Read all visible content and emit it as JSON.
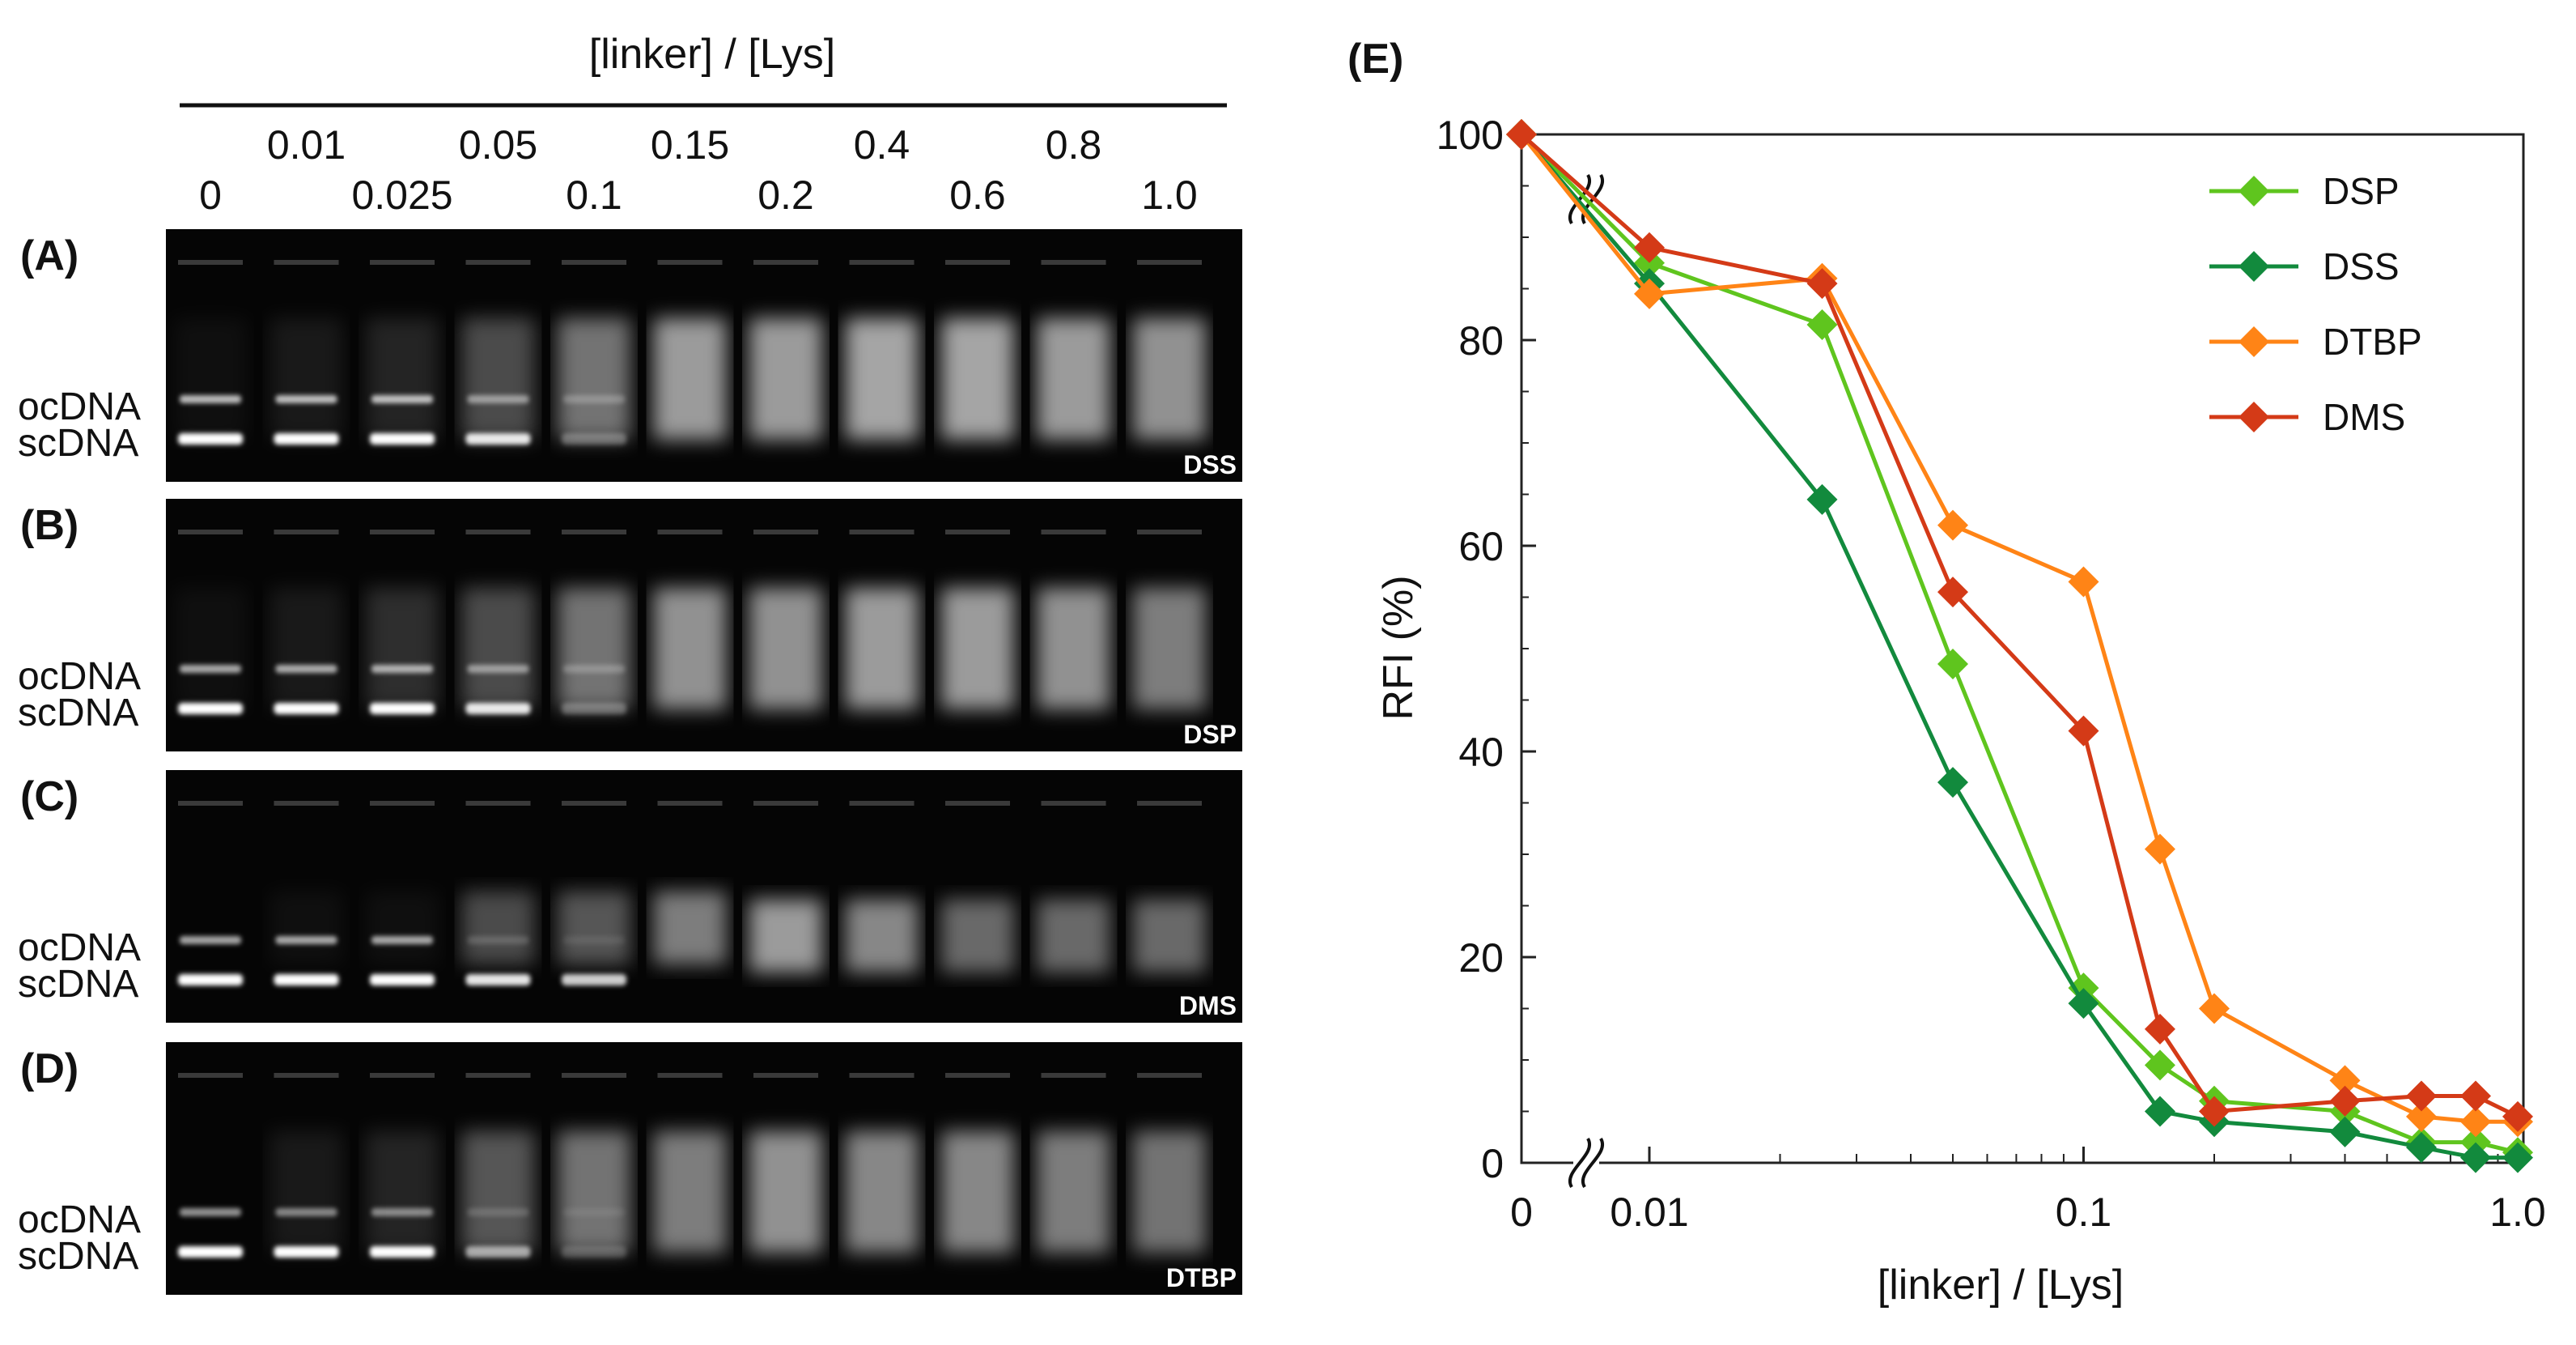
{
  "gel_figure": {
    "header_label": "[linker] / [Lys]",
    "lane_labels_top": [
      "0.01",
      "0.05",
      "0.15",
      "0.4",
      "0.8"
    ],
    "lane_labels_bottom": [
      "0",
      "0.025",
      "0.1",
      "0.2",
      "0.6",
      "1.0"
    ],
    "band_labels": {
      "oc": "ocDNA",
      "sc": "scDNA"
    },
    "panels": [
      {
        "letter": "(A)",
        "name": "DSS"
      },
      {
        "letter": "(B)",
        "name": "DSP"
      },
      {
        "letter": "(C)",
        "name": "DMS"
      },
      {
        "letter": "(D)",
        "name": "DTBP"
      }
    ]
  },
  "chart_data": {
    "type": "line",
    "panel_label": "(E)",
    "xlabel": "[linker] / [Lys]",
    "ylabel": "RFI (%)",
    "xscale": "log (with axis break near 0)",
    "ylim": [
      0,
      100
    ],
    "yticks": [
      "0",
      "20",
      "40",
      "60",
      "80",
      "100"
    ],
    "xticks": [
      "0",
      "0.01",
      "0.1",
      "1.0"
    ],
    "x": [
      0,
      0.01,
      0.025,
      0.05,
      0.1,
      0.15,
      0.2,
      0.4,
      0.6,
      0.8,
      1.0
    ],
    "legend_position": "top-right",
    "grid": false,
    "series": [
      {
        "name": "DSP",
        "color": "#5fc51e",
        "values": [
          100,
          87.5,
          81.5,
          48.5,
          17,
          9.5,
          6,
          5,
          2,
          2,
          1
        ]
      },
      {
        "name": "DSS",
        "color": "#128a3d",
        "values": [
          100,
          85.5,
          64.5,
          37,
          15.5,
          5,
          4,
          3,
          1.5,
          0.5,
          0.5
        ]
      },
      {
        "name": "DTBP",
        "color": "#ff8416",
        "values": [
          100,
          84.5,
          86,
          62,
          56.5,
          30.5,
          15,
          8,
          4.5,
          4,
          4
        ]
      },
      {
        "name": "DMS",
        "color": "#d43a17",
        "values": [
          100,
          89,
          85.5,
          55.5,
          42,
          13,
          5,
          6,
          6.5,
          6.5,
          4.5
        ]
      }
    ]
  }
}
